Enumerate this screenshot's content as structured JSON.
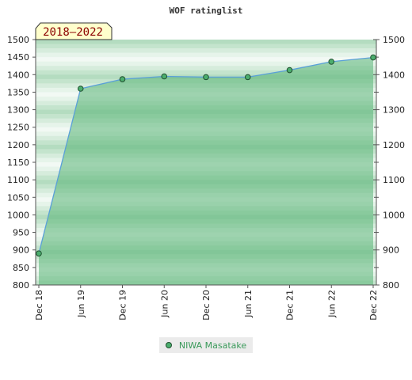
{
  "chart_data": {
    "type": "area",
    "title": "WOF ratinglist",
    "period_badge": "2018–2022",
    "x": [
      "Dec 18",
      "Jun 19",
      "Dec 19",
      "Jun 20",
      "Dec 20",
      "Jun 21",
      "Dec 21",
      "Jun 22",
      "Dec 22"
    ],
    "series": [
      {
        "name": "NIWA Masatake",
        "values": [
          890,
          1360,
          1387,
          1395,
          1393,
          1393,
          1413,
          1437,
          1449
        ]
      }
    ],
    "ylim_left": [
      800,
      1500
    ],
    "yticks_left": [
      800,
      850,
      900,
      950,
      1000,
      1050,
      1100,
      1150,
      1200,
      1250,
      1300,
      1350,
      1400,
      1450,
      1500
    ],
    "ylim_right": [
      800,
      1500
    ],
    "yticks_right": [
      800,
      900,
      1000,
      1100,
      1200,
      1300,
      1400,
      1500
    ],
    "legend_position": "bottom-center",
    "colors": {
      "line": "#5aa0d8",
      "area_fill": "#5ab577",
      "marker": "#4cae6e",
      "marker_edge": "#1f4f2f",
      "legend_text": "#3a9a5a",
      "badge_bg": "#ffffcc",
      "badge_text": "#8b0000"
    }
  }
}
